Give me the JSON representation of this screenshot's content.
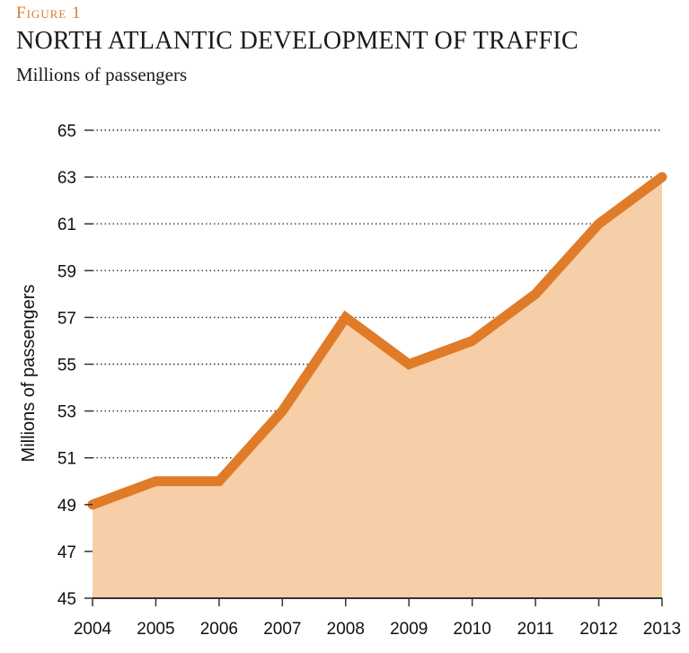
{
  "figure_label": "Figure 1",
  "title": "NORTH ATLANTIC DEVELOPMENT OF TRAFFIC",
  "subtitle": "Millions of passengers",
  "colors": {
    "accent": "#e07b2a",
    "area_fill": "#f6cfa8",
    "grid": "#333333",
    "text": "#111111"
  },
  "chart_data": {
    "type": "area",
    "title": "NORTH ATLANTIC DEVELOPMENT OF TRAFFIC",
    "subtitle": "Millions of passengers",
    "xlabel": "",
    "ylabel": "Millions of passengers",
    "categories": [
      "2004",
      "2005",
      "2006",
      "2007",
      "2008",
      "2009",
      "2010",
      "2011",
      "2012",
      "2013"
    ],
    "series": [
      {
        "name": "Millions of passengers",
        "values": [
          49,
          50,
          50,
          53,
          57,
          55,
          56,
          58,
          61,
          63
        ]
      }
    ],
    "ylim": [
      45,
      65
    ],
    "yticks": [
      45,
      47,
      49,
      51,
      53,
      55,
      57,
      59,
      61,
      63,
      65
    ],
    "grid": "horizontal dotted",
    "legend": "none"
  }
}
